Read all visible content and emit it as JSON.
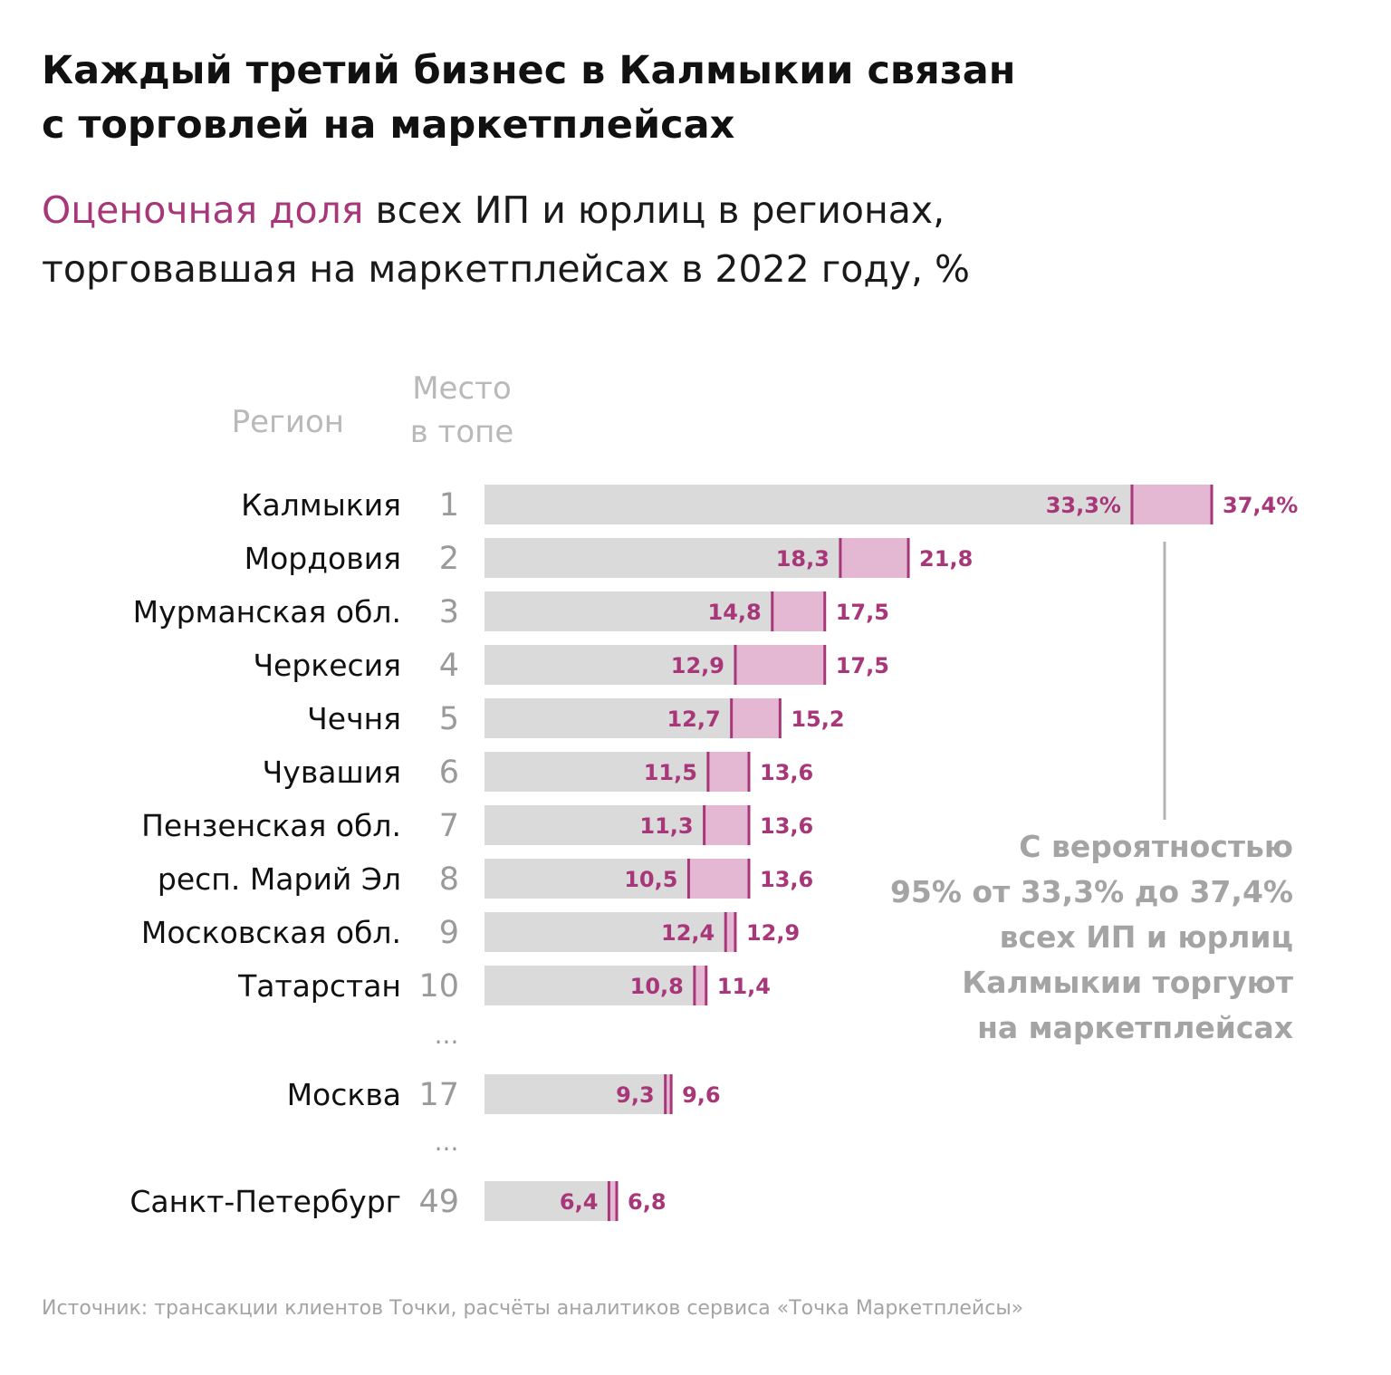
{
  "title_line1": "Каждый третий бизнес в Калмыкии связан",
  "title_line2": "с торговлей на маркетплейсах",
  "subtitle_highlight": "Оценочная доля",
  "subtitle_rest1": " всех ИП и юрлиц в регионах,",
  "subtitle_line2": "торговавшая на маркетплейсах в 2022 году, %",
  "col_region": "Регион",
  "col_rank_line1": "Место",
  "col_rank_line2": "в топе",
  "ellipsis": "...",
  "note_lines": [
    "С вероятностью",
    "95% от 33,3% до 37,4%",
    "всех ИП и юрлиц",
    "Калмыкии торгуют",
    "на маркетплейсах"
  ],
  "source": "Источник: трансакции клиентов Точки, расчёты аналитиков сервиса «Точка Маркетплейсы»",
  "colors": {
    "bar": "#dadada",
    "range": "#e4b8d2",
    "accent": "#a8377a",
    "label": "#111111",
    "rank": "#9a9a9a"
  },
  "chart_data": {
    "type": "bar",
    "orientation": "horizontal",
    "xlim": [
      0,
      37.4
    ],
    "series": [
      {
        "name": "Оценочная доля",
        "role": "lower_bound"
      },
      {
        "name": "Оценочная доля",
        "role": "upper_bound"
      }
    ],
    "rows": [
      {
        "region": "Калмыкия",
        "rank": "1",
        "low": 33.3,
        "high": 37.4,
        "low_label": "33,3%",
        "high_label": "37,4%"
      },
      {
        "region": "Мордовия",
        "rank": "2",
        "low": 18.3,
        "high": 21.8,
        "low_label": "18,3",
        "high_label": "21,8"
      },
      {
        "region": "Мурманская обл.",
        "rank": "3",
        "low": 14.8,
        "high": 17.5,
        "low_label": "14,8",
        "high_label": "17,5"
      },
      {
        "region": "Черкесия",
        "rank": "4",
        "low": 12.9,
        "high": 17.5,
        "low_label": "12,9",
        "high_label": "17,5"
      },
      {
        "region": "Чечня",
        "rank": "5",
        "low": 12.7,
        "high": 15.2,
        "low_label": "12,7",
        "high_label": "15,2"
      },
      {
        "region": "Чувашия",
        "rank": "6",
        "low": 11.5,
        "high": 13.6,
        "low_label": "11,5",
        "high_label": "13,6"
      },
      {
        "region": "Пензенская обл.",
        "rank": "7",
        "low": 11.3,
        "high": 13.6,
        "low_label": "11,3",
        "high_label": "13,6"
      },
      {
        "region": "респ. Марий Эл",
        "rank": "8",
        "low": 10.5,
        "high": 13.6,
        "low_label": "10,5",
        "high_label": "13,6"
      },
      {
        "region": "Московская обл.",
        "rank": "9",
        "low": 12.4,
        "high": 12.9,
        "low_label": "12,4",
        "high_label": "12,9"
      },
      {
        "region": "Татарстан",
        "rank": "10",
        "low": 10.8,
        "high": 11.4,
        "low_label": "10,8",
        "high_label": "11,4"
      },
      {
        "region": "Москва",
        "rank": "17",
        "low": 9.3,
        "high": 9.6,
        "low_label": "9,3",
        "high_label": "9,6"
      },
      {
        "region": "Санкт-Петербург",
        "rank": "49",
        "low": 6.4,
        "high": 6.8,
        "low_label": "6,4",
        "high_label": "6,8"
      }
    ]
  }
}
